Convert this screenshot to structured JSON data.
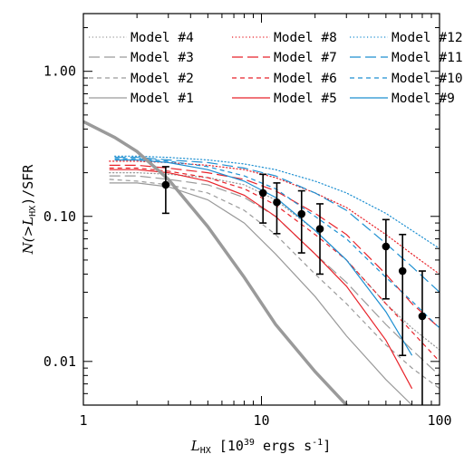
{
  "chart_data": {
    "type": "line",
    "xscale": "log",
    "yscale": "log",
    "xlim": [
      1,
      100
    ],
    "ylim": [
      0.005,
      2.5
    ],
    "grid": false,
    "legend_position": "top",
    "xlabel": {
      "var": "L",
      "sub": "HX",
      "units_pre": "[10",
      "units_exp": "39",
      "units_mid": " ergs s",
      "units_exp2": "-1",
      "units_post": "]"
    },
    "ylabel": {
      "pre": "N(>",
      "var": "L",
      "sub": "HX",
      "post": ")/SFR"
    },
    "xticks": [
      {
        "v": 1,
        "label": "1"
      },
      {
        "v": 10,
        "label": "10"
      },
      {
        "v": 100,
        "label": "100"
      }
    ],
    "yticks": [
      {
        "v": 0.01,
        "label": "0.01"
      },
      {
        "v": 0.1,
        "label": "0.10"
      },
      {
        "v": 1,
        "label": "1.00"
      }
    ],
    "colors": {
      "gray": "#9a9a9a",
      "red": "#e8232a",
      "blue": "#1d8fd1",
      "data": "#000000"
    },
    "series": [
      {
        "name": "Model #4",
        "color": "gray",
        "style": "dotted",
        "width": 1.2,
        "x": [
          1.4,
          2,
          3,
          5,
          8,
          12,
          20,
          30,
          50,
          70,
          100
        ],
        "y": [
          0.2,
          0.2,
          0.195,
          0.185,
          0.165,
          0.13,
          0.08,
          0.05,
          0.025,
          0.017,
          0.012
        ]
      },
      {
        "name": "Model #3",
        "color": "gray",
        "style": "longdash",
        "width": 1.2,
        "x": [
          1.4,
          2,
          3,
          5,
          8,
          12,
          20,
          30,
          50,
          70,
          100
        ],
        "y": [
          0.19,
          0.19,
          0.18,
          0.165,
          0.135,
          0.1,
          0.055,
          0.035,
          0.018,
          0.012,
          0.008
        ]
      },
      {
        "name": "Model #2",
        "color": "gray",
        "style": "dashed",
        "width": 1.2,
        "x": [
          1.4,
          2,
          3,
          5,
          8,
          12,
          20,
          30,
          50,
          70,
          100
        ],
        "y": [
          0.18,
          0.175,
          0.165,
          0.145,
          0.11,
          0.075,
          0.04,
          0.025,
          0.013,
          0.009,
          0.0065
        ]
      },
      {
        "name": "Model #1",
        "color": "gray",
        "style": "solid",
        "width": 1.2,
        "x": [
          1.4,
          2,
          3,
          5,
          8,
          12,
          20,
          30,
          50,
          70
        ],
        "y": [
          0.17,
          0.17,
          0.16,
          0.13,
          0.09,
          0.055,
          0.028,
          0.015,
          0.0075,
          0.005
        ]
      },
      {
        "name": "Model #8",
        "color": "red",
        "style": "dotted",
        "width": 1.2,
        "x": [
          1.4,
          2,
          3,
          5,
          8,
          12,
          20,
          30,
          50,
          70,
          100
        ],
        "y": [
          0.24,
          0.24,
          0.235,
          0.225,
          0.21,
          0.185,
          0.145,
          0.115,
          0.075,
          0.055,
          0.04
        ]
      },
      {
        "name": "Model #7",
        "color": "red",
        "style": "longdash",
        "width": 1.2,
        "x": [
          1.4,
          2,
          3,
          5,
          8,
          12,
          20,
          30,
          50,
          70,
          100
        ],
        "y": [
          0.225,
          0.225,
          0.215,
          0.2,
          0.18,
          0.15,
          0.105,
          0.075,
          0.04,
          0.025,
          0.017
        ]
      },
      {
        "name": "Model #6",
        "color": "red",
        "style": "dashed",
        "width": 1.2,
        "x": [
          1.4,
          2,
          3,
          5,
          8,
          12,
          20,
          30,
          50,
          70,
          100
        ],
        "y": [
          0.215,
          0.215,
          0.205,
          0.185,
          0.155,
          0.12,
          0.075,
          0.05,
          0.025,
          0.016,
          0.01
        ]
      },
      {
        "name": "Model #5",
        "color": "red",
        "style": "solid",
        "width": 1.2,
        "x": [
          1.4,
          2,
          3,
          5,
          8,
          12,
          20,
          30,
          50,
          70
        ],
        "y": [
          0.21,
          0.21,
          0.2,
          0.175,
          0.14,
          0.1,
          0.055,
          0.033,
          0.014,
          0.0065
        ]
      },
      {
        "name": "Model #12",
        "color": "blue",
        "style": "dotted",
        "width": 1.2,
        "x": [
          1.5,
          2,
          3,
          5,
          8,
          12,
          20,
          30,
          50,
          70,
          100
        ],
        "y": [
          0.26,
          0.26,
          0.255,
          0.245,
          0.23,
          0.21,
          0.175,
          0.145,
          0.105,
          0.08,
          0.06
        ]
      },
      {
        "name": "Model #11",
        "color": "blue",
        "style": "longdash",
        "width": 1.2,
        "x": [
          1.5,
          2,
          3,
          5,
          8,
          12,
          20,
          30,
          50,
          70,
          100
        ],
        "y": [
          0.255,
          0.255,
          0.245,
          0.235,
          0.215,
          0.19,
          0.145,
          0.11,
          0.065,
          0.045,
          0.03
        ]
      },
      {
        "name": "Model #10",
        "color": "blue",
        "style": "dashed",
        "width": 1.2,
        "x": [
          1.5,
          2,
          3,
          5,
          8,
          12,
          20,
          30,
          50,
          70,
          100
        ],
        "y": [
          0.25,
          0.25,
          0.24,
          0.22,
          0.19,
          0.155,
          0.1,
          0.07,
          0.038,
          0.026,
          0.017
        ]
      },
      {
        "name": "Model #9",
        "color": "blue",
        "style": "solid",
        "width": 1.2,
        "x": [
          1.5,
          2,
          3,
          5,
          8,
          12,
          20,
          30,
          50,
          70
        ],
        "y": [
          0.245,
          0.245,
          0.235,
          0.21,
          0.175,
          0.135,
          0.08,
          0.05,
          0.022,
          0.011
        ]
      },
      {
        "color": "gray",
        "style": "solid",
        "width": 3.5,
        "x": [
          1,
          1.5,
          2,
          3,
          5,
          8,
          12,
          20,
          30,
          40
        ],
        "y": [
          0.45,
          0.35,
          0.28,
          0.18,
          0.085,
          0.038,
          0.018,
          0.0085,
          0.005,
          0.0034
        ]
      }
    ],
    "points": [
      {
        "x": 2.9,
        "y": 0.165,
        "lo": 0.105,
        "hi": 0.22
      },
      {
        "x": 10.2,
        "y": 0.145,
        "lo": 0.09,
        "hi": 0.195
      },
      {
        "x": 12.2,
        "y": 0.125,
        "lo": 0.076,
        "hi": 0.17
      },
      {
        "x": 16.8,
        "y": 0.104,
        "lo": 0.056,
        "hi": 0.15
      },
      {
        "x": 21.3,
        "y": 0.082,
        "lo": 0.04,
        "hi": 0.122
      },
      {
        "x": 50,
        "y": 0.062,
        "lo": 0.027,
        "hi": 0.095
      },
      {
        "x": 62,
        "y": 0.042,
        "lo": 0.011,
        "hi": 0.075
      },
      {
        "x": 80,
        "y": 0.0205,
        "lo": 0.0035,
        "hi": 0.042
      }
    ],
    "legend": [
      [
        "Model #4",
        "Model #8",
        "Model #12"
      ],
      [
        "Model #3",
        "Model #7",
        "Model #11"
      ],
      [
        "Model #2",
        "Model #6",
        "Model #10"
      ],
      [
        "Model #1",
        "Model #5",
        "Model #9"
      ]
    ]
  }
}
